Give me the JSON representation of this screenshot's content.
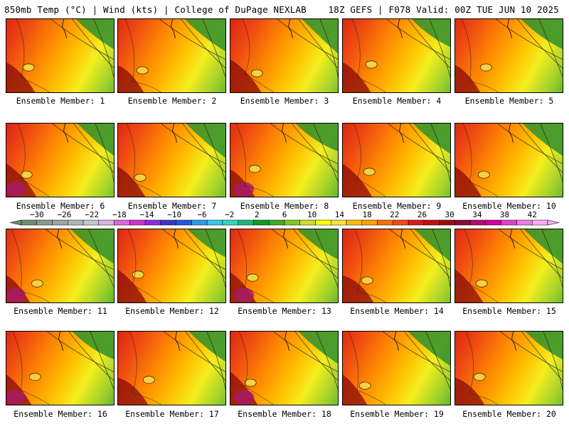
{
  "header": {
    "left": "850mb Temp (°C) | Wind (kts) | College of DuPage NEXLAB",
    "right": "18Z GEFS | F078 Valid: 00Z TUE JUN 10 2025"
  },
  "members": [
    {
      "label": "Ensemble Member: 1"
    },
    {
      "label": "Ensemble Member: 2"
    },
    {
      "label": "Ensemble Member: 3"
    },
    {
      "label": "Ensemble Member: 4"
    },
    {
      "label": "Ensemble Member: 5"
    },
    {
      "label": "Ensemble Member: 6"
    },
    {
      "label": "Ensemble Member: 7"
    },
    {
      "label": "Ensemble Member: 8"
    },
    {
      "label": "Ensemble Member: 9"
    },
    {
      "label": "Ensemble Member: 10"
    },
    {
      "label": "Ensemble Member: 11"
    },
    {
      "label": "Ensemble Member: 12"
    },
    {
      "label": "Ensemble Member: 13"
    },
    {
      "label": "Ensemble Member: 14"
    },
    {
      "label": "Ensemble Member: 15"
    },
    {
      "label": "Ensemble Member: 16"
    },
    {
      "label": "Ensemble Member: 17"
    },
    {
      "label": "Ensemble Member: 18"
    },
    {
      "label": "Ensemble Member: 19"
    },
    {
      "label": "Ensemble Member: 20"
    }
  ],
  "colorbar": {
    "ticks": [
      "−30",
      "−26",
      "−22",
      "−18",
      "−14",
      "−10",
      "−6",
      "−2",
      "2",
      "6",
      "10",
      "14",
      "18",
      "22",
      "26",
      "30",
      "34",
      "38",
      "42"
    ],
    "colors": [
      "#6e8c74",
      "#8c9b92",
      "#9ea6a4",
      "#b1b7b8",
      "#c4c7cc",
      "#d9b3e6",
      "#e066e0",
      "#cc33cc",
      "#8a2be2",
      "#3d35c9",
      "#1e5adc",
      "#2b9be6",
      "#37c9e6",
      "#2fd7c0",
      "#1fb878",
      "#129a2a",
      "#3cae2a",
      "#86c82a",
      "#cce02a",
      "#ffff00",
      "#ffe040",
      "#ffc000",
      "#ffa000",
      "#ff7000",
      "#f44a18",
      "#e01a1a",
      "#c00e0e",
      "#a00b0b",
      "#8a0a3a",
      "#b00a70",
      "#d000a0",
      "#e040d0",
      "#f07ae8",
      "#f6b0f0"
    ]
  }
}
